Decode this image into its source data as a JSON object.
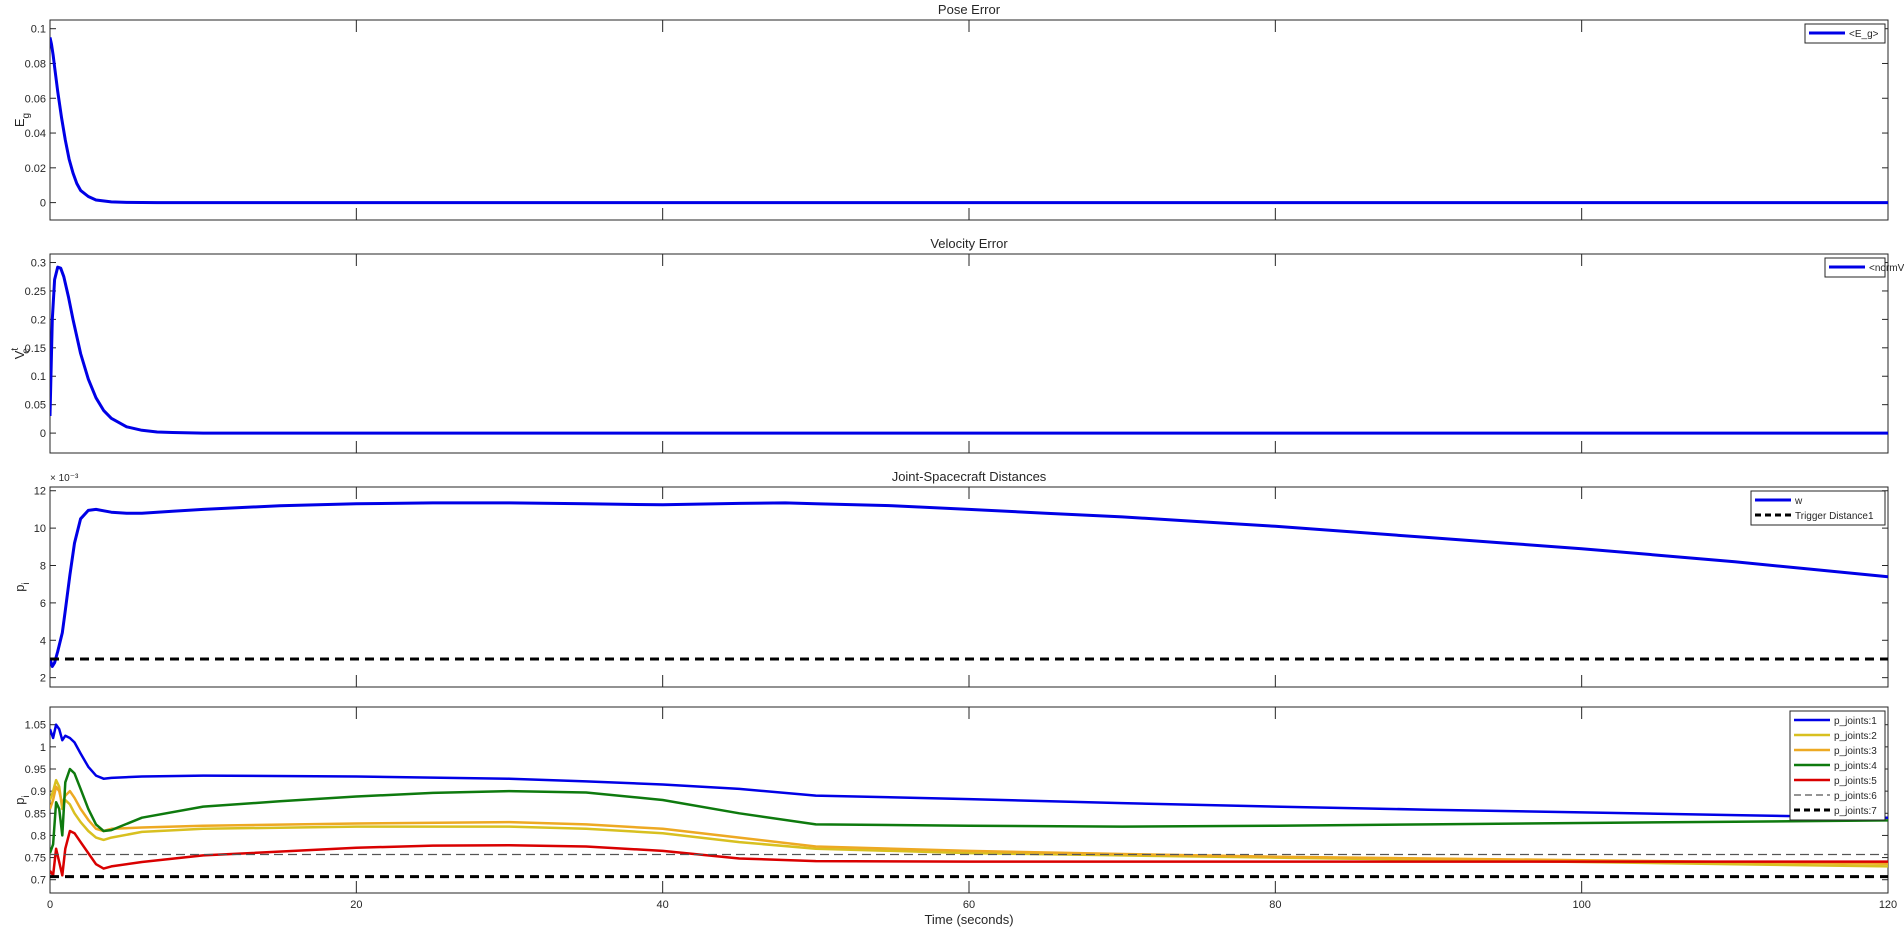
{
  "chart_data": [
    {
      "type": "line",
      "title": "Pose Error",
      "xlabel": "",
      "ylabel": "E",
      "ylabel_sub": "g",
      "ylabel_sup": "",
      "xlim": [
        0,
        120
      ],
      "ylim": [
        -0.01,
        0.105
      ],
      "yticks": [
        0,
        0.02,
        0.04,
        0.06,
        0.08,
        0.1
      ],
      "ytick_labels": [
        "0",
        "0.02",
        "0.04",
        "0.06",
        "0.08",
        "0.1"
      ],
      "y_exponent": "",
      "grid": false,
      "legend_position": "top-right",
      "series": [
        {
          "name": "<E_g>",
          "color": "#0000e6",
          "style": "solid",
          "width": 3,
          "x": [
            0,
            0.1,
            0.2,
            0.3,
            0.5,
            0.75,
            1,
            1.25,
            1.5,
            1.75,
            2,
            2.5,
            3,
            4,
            5,
            7,
            10,
            120
          ],
          "y": [
            0.095,
            0.091,
            0.085,
            0.078,
            0.064,
            0.049,
            0.036,
            0.025,
            0.017,
            0.011,
            0.007,
            0.0035,
            0.0015,
            0.0004,
            0.0001,
            0,
            0,
            0
          ]
        }
      ]
    },
    {
      "type": "line",
      "title": "Velocity Error",
      "xlabel": "",
      "ylabel": "V",
      "ylabel_sub": "e",
      "ylabel_sup": "t",
      "xlim": [
        0,
        120
      ],
      "ylim": [
        -0.035,
        0.315
      ],
      "yticks": [
        0,
        0.05,
        0.1,
        0.15,
        0.2,
        0.25,
        0.3
      ],
      "ytick_labels": [
        "0",
        "0.05",
        "0.1",
        "0.15",
        "0.2",
        "0.25",
        "0.3"
      ],
      "y_exponent": "",
      "grid": false,
      "legend_position": "top-right",
      "series": [
        {
          "name": "<normV>",
          "color": "#0000e6",
          "style": "solid",
          "width": 3,
          "x": [
            0,
            0.15,
            0.3,
            0.5,
            0.7,
            0.9,
            1.2,
            1.5,
            2,
            2.5,
            3,
            3.5,
            4,
            5,
            6,
            7,
            8,
            10,
            120
          ],
          "y": [
            0.03,
            0.2,
            0.27,
            0.292,
            0.29,
            0.275,
            0.24,
            0.2,
            0.14,
            0.095,
            0.062,
            0.04,
            0.026,
            0.011,
            0.005,
            0.002,
            0.001,
            0,
            0
          ]
        }
      ]
    },
    {
      "type": "line",
      "title": "Joint-Spacecraft Distances",
      "xlabel": "",
      "ylabel": "p",
      "ylabel_sub": "i",
      "ylabel_sup": "",
      "xlim": [
        0,
        120
      ],
      "ylim": [
        1.5,
        12.2
      ],
      "yticks": [
        2,
        4,
        6,
        8,
        10,
        12
      ],
      "ytick_labels": [
        "2",
        "4",
        "6",
        "8",
        "10",
        "12"
      ],
      "y_exponent": "× 10⁻³",
      "grid": false,
      "legend_position": "top-right",
      "series": [
        {
          "name": "w",
          "color": "#0000e6",
          "style": "solid",
          "width": 3,
          "x": [
            0,
            0.15,
            0.3,
            0.5,
            0.8,
            1,
            1.3,
            1.6,
            2,
            2.5,
            3,
            4,
            5,
            6,
            8,
            10,
            15,
            20,
            25,
            30,
            35,
            40,
            45,
            48,
            50,
            55,
            60,
            65,
            70,
            75,
            80,
            85,
            90,
            95,
            100,
            105,
            110,
            115,
            120
          ],
          "y": [
            3.0,
            2.6,
            2.8,
            3.4,
            4.4,
            5.6,
            7.5,
            9.2,
            10.5,
            10.95,
            11.0,
            10.85,
            10.8,
            10.8,
            10.9,
            11.0,
            11.2,
            11.3,
            11.35,
            11.35,
            11.3,
            11.25,
            11.32,
            11.35,
            11.3,
            11.2,
            11.0,
            10.8,
            10.6,
            10.35,
            10.1,
            9.8,
            9.5,
            9.2,
            8.9,
            8.55,
            8.2,
            7.8,
            7.4
          ]
        },
        {
          "name": "Trigger Distance1",
          "color": "#000000",
          "style": "dashed",
          "width": 3,
          "x": [
            0,
            120
          ],
          "y": [
            3.0,
            3.0
          ]
        }
      ]
    },
    {
      "type": "line",
      "title": "",
      "xlabel": "Time (seconds)",
      "ylabel": "p",
      "ylabel_sub": "i",
      "ylabel_sup": "",
      "xlim": [
        0,
        120
      ],
      "ylim": [
        0.67,
        1.09
      ],
      "xticks": [
        0,
        20,
        40,
        60,
        80,
        100,
        120
      ],
      "xtick_labels": [
        "0",
        "20",
        "40",
        "60",
        "80",
        "100",
        "120"
      ],
      "yticks": [
        0.7,
        0.75,
        0.8,
        0.85,
        0.9,
        0.95,
        1,
        1.05
      ],
      "ytick_labels": [
        "0.7",
        "0.75",
        "0.8",
        "0.85",
        "0.9",
        "0.95",
        "1",
        "1.05"
      ],
      "y_exponent": "",
      "grid": false,
      "legend_position": "top-right",
      "series": [
        {
          "name": "p_joints:1",
          "color": "#0000e6",
          "style": "solid",
          "width": 2.5,
          "x": [
            0,
            0.2,
            0.4,
            0.6,
            0.8,
            1,
            1.3,
            1.6,
            2,
            2.5,
            3,
            3.5,
            4,
            6,
            10,
            20,
            30,
            35,
            40,
            45,
            50,
            60,
            70,
            80,
            90,
            100,
            110,
            120
          ],
          "y": [
            1.04,
            1.02,
            1.05,
            1.04,
            1.015,
            1.025,
            1.02,
            1.01,
            0.985,
            0.955,
            0.935,
            0.928,
            0.93,
            0.933,
            0.935,
            0.933,
            0.928,
            0.922,
            0.915,
            0.905,
            0.89,
            0.882,
            0.873,
            0.865,
            0.858,
            0.852,
            0.846,
            0.84
          ]
        },
        {
          "name": "p_joints:2",
          "color": "#d8c020",
          "style": "solid",
          "width": 2.5,
          "x": [
            0,
            0.2,
            0.4,
            0.6,
            0.8,
            1,
            1.3,
            1.6,
            2,
            2.5,
            3,
            3.5,
            4,
            6,
            10,
            20,
            30,
            35,
            40,
            45,
            50,
            60,
            70,
            80,
            90,
            100,
            110,
            120
          ],
          "y": [
            0.88,
            0.9,
            0.925,
            0.91,
            0.86,
            0.88,
            0.87,
            0.85,
            0.83,
            0.81,
            0.795,
            0.79,
            0.795,
            0.808,
            0.815,
            0.82,
            0.82,
            0.815,
            0.805,
            0.785,
            0.77,
            0.76,
            0.755,
            0.75,
            0.745,
            0.74,
            0.735,
            0.73
          ]
        },
        {
          "name": "p_joints:3",
          "color": "#eda923",
          "style": "solid",
          "width": 2.5,
          "x": [
            0,
            0.2,
            0.4,
            0.6,
            0.8,
            1,
            1.3,
            1.6,
            2,
            2.5,
            3,
            3.5,
            4,
            6,
            10,
            20,
            30,
            35,
            40,
            45,
            50,
            60,
            70,
            80,
            90,
            100,
            110,
            120
          ],
          "y": [
            0.86,
            0.88,
            0.91,
            0.9,
            0.87,
            0.89,
            0.9,
            0.885,
            0.86,
            0.835,
            0.815,
            0.81,
            0.815,
            0.818,
            0.822,
            0.827,
            0.83,
            0.825,
            0.815,
            0.795,
            0.775,
            0.765,
            0.758,
            0.752,
            0.748,
            0.744,
            0.74,
            0.736
          ]
        },
        {
          "name": "p_joints:4",
          "color": "#0e7a0e",
          "style": "solid",
          "width": 2.5,
          "x": [
            0,
            0.2,
            0.4,
            0.6,
            0.8,
            1,
            1.3,
            1.6,
            2,
            2.5,
            3,
            3.5,
            4,
            6,
            10,
            15,
            20,
            25,
            30,
            35,
            40,
            45,
            50,
            60,
            70,
            80,
            90,
            100,
            110,
            120
          ],
          "y": [
            0.76,
            0.78,
            0.875,
            0.86,
            0.8,
            0.92,
            0.95,
            0.94,
            0.905,
            0.86,
            0.825,
            0.81,
            0.812,
            0.84,
            0.865,
            0.877,
            0.888,
            0.896,
            0.9,
            0.897,
            0.88,
            0.85,
            0.825,
            0.822,
            0.82,
            0.822,
            0.825,
            0.828,
            0.831,
            0.834
          ]
        },
        {
          "name": "p_joints:5",
          "color": "#d90000",
          "style": "solid",
          "width": 2.5,
          "x": [
            0,
            0.2,
            0.4,
            0.6,
            0.8,
            1,
            1.3,
            1.6,
            2,
            2.5,
            3,
            3.5,
            4,
            6,
            10,
            20,
            25,
            30,
            35,
            40,
            45,
            50,
            60,
            70,
            80,
            90,
            100,
            110,
            120
          ],
          "y": [
            0.72,
            0.71,
            0.77,
            0.74,
            0.71,
            0.77,
            0.81,
            0.805,
            0.785,
            0.76,
            0.735,
            0.725,
            0.73,
            0.74,
            0.755,
            0.772,
            0.777,
            0.778,
            0.775,
            0.765,
            0.748,
            0.742,
            0.741,
            0.741,
            0.741,
            0.741,
            0.741,
            0.741,
            0.741
          ]
        },
        {
          "name": "p_joints:6",
          "color": "#555555",
          "style": "dashed-thin",
          "width": 1.2,
          "x": [
            0,
            120
          ],
          "y": [
            0.757,
            0.757
          ]
        },
        {
          "name": "p_joints:7",
          "color": "#000000",
          "style": "dashed",
          "width": 3,
          "x": [
            0,
            120
          ],
          "y": [
            0.707,
            0.707
          ]
        }
      ]
    }
  ]
}
